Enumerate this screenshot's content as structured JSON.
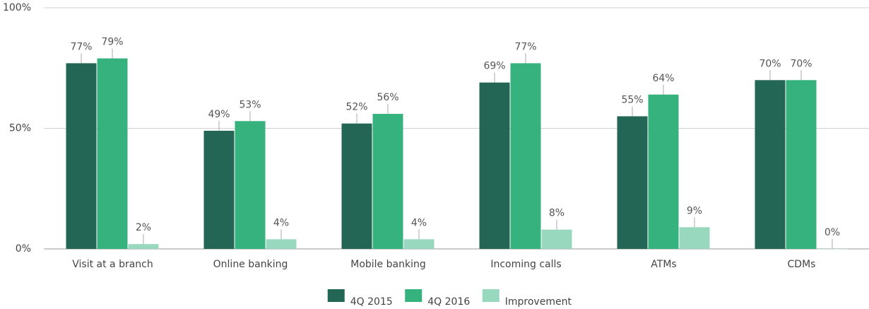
{
  "chart_data": {
    "type": "bar",
    "categories": [
      "Visit at a branch",
      "Online banking",
      "Mobile banking",
      "Incoming calls",
      "ATMs",
      "CDMs"
    ],
    "series": [
      {
        "name": "4Q 2015",
        "color": "#246655",
        "values": [
          77,
          49,
          52,
          69,
          55,
          70
        ],
        "value_labels": [
          "77%",
          "49%",
          "52%",
          "69%",
          "55%",
          "70%"
        ]
      },
      {
        "name": "4Q 2016",
        "color": "#35b27e",
        "values": [
          79,
          53,
          56,
          77,
          64,
          70
        ],
        "value_labels": [
          "79%",
          "53%",
          "56%",
          "77%",
          "64%",
          "70%"
        ]
      },
      {
        "name": "Improvement",
        "color": "#98d8bf",
        "values": [
          2,
          4,
          4,
          8,
          9,
          0
        ],
        "value_labels": [
          "2%",
          "4%",
          "4%",
          "8%",
          "9%",
          "0%"
        ]
      }
    ],
    "ylim": [
      0,
      100
    ],
    "yticks": [
      {
        "value": 0,
        "label": "0%"
      },
      {
        "value": 50,
        "label": "50%"
      },
      {
        "value": 100,
        "label": "100%"
      }
    ],
    "grid": true,
    "legend": "bottom"
  }
}
